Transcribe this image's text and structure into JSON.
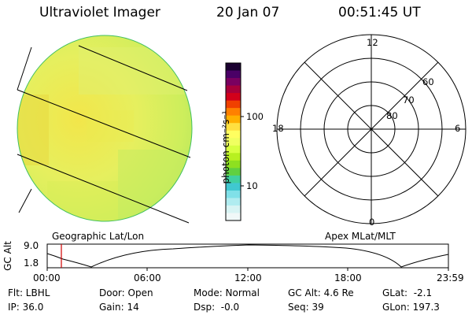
{
  "header": {
    "instrument": "Ultraviolet Imager",
    "date": "20 Jan 07",
    "time": "00:51:45 UT"
  },
  "colorbar": {
    "unit_label": "photon cm⁻²s⁻¹",
    "tick_100": "100",
    "tick_10": "10",
    "colors_top_to_bottom": [
      "#1a0030",
      "#4a0066",
      "#7a0060",
      "#a8003a",
      "#d2001a",
      "#f04000",
      "#ff8000",
      "#ffb000",
      "#ffe040",
      "#ffff60",
      "#f0ff60",
      "#d8ff40",
      "#b8f020",
      "#8ee020",
      "#60d040",
      "#40d0a0",
      "#40c8d0",
      "#80e0e8",
      "#b0ecf0",
      "#d8f4f4",
      "#f0f8f8"
    ]
  },
  "left_panel": {
    "caption": "Geographic Lat/Lon",
    "image_colors": [
      "#f4e640",
      "#e8f060",
      "#c8ec5a",
      "#dfe030"
    ]
  },
  "right_panel": {
    "caption": "Apex MLat/MLT",
    "mlt_labels": [
      "12",
      "18",
      "6",
      "0"
    ],
    "lat_labels": [
      "60",
      "70",
      "80"
    ]
  },
  "altitude_plot": {
    "ylabel": "GC Alt",
    "y_ticks": [
      "9.0",
      "1.8"
    ],
    "x_ticks": [
      "00:00",
      "06:00",
      "12:00",
      "18:00",
      "23:59"
    ],
    "marker_color": "#d00000"
  },
  "footer": {
    "row1": {
      "flt": "Flt: LBHL",
      "door": "Door: Open",
      "mode": "Mode: Normal",
      "gc_alt": "GC Alt: 4.6 Re",
      "glat": "GLat:  -2.1"
    },
    "row2": {
      "ip": "IP: 36.0",
      "gain": "Gain: 14",
      "dsp": "Dsp:  -0.0",
      "seq": "Seq: 39",
      "glon": "GLon: 197.3"
    }
  }
}
